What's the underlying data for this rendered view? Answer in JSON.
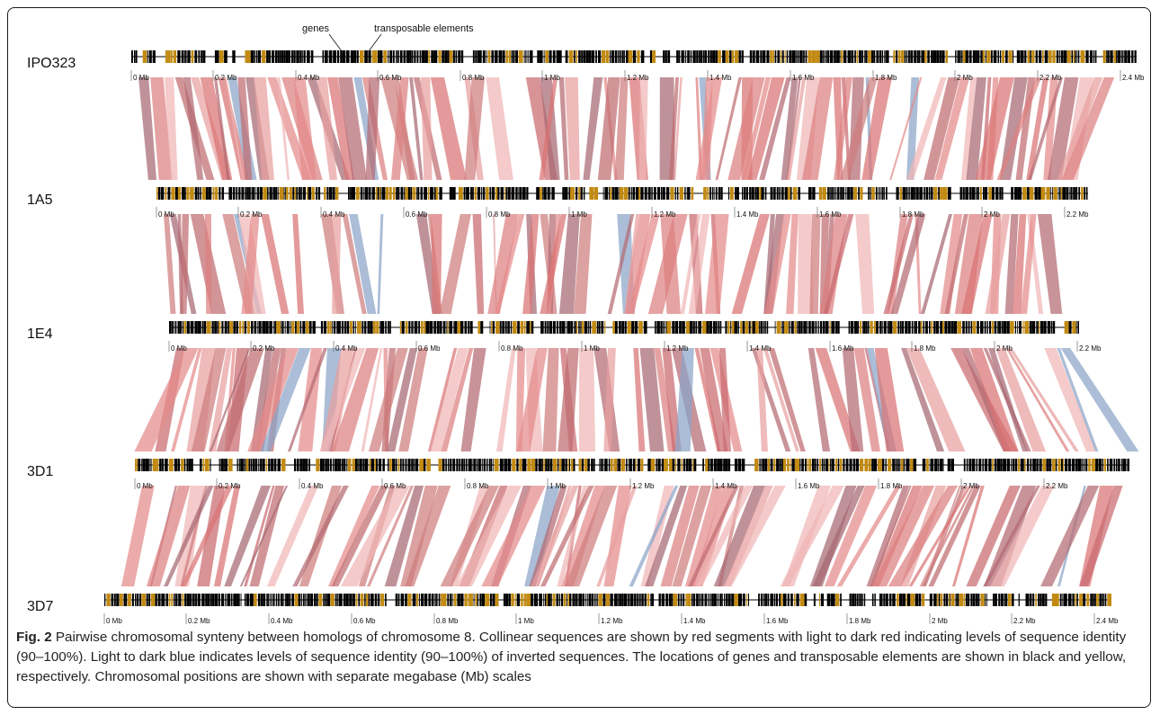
{
  "figure": {
    "legend": {
      "genes_label": "genes",
      "te_label": "transposable elements"
    },
    "colors": {
      "gene": "#000000",
      "transposable_element": "#c28a12",
      "collinear": "#d96b6b",
      "collinear_dark": "#9a6670",
      "inverted": "#8aa3c8"
    },
    "tracks": [
      {
        "name": "IPO323",
        "max_mb": 2.4,
        "ticks": [
          "0 Mb",
          "0.2 Mb",
          "0.4 Mb",
          "0.6 Mb",
          "0.8 Mb",
          "1 Mb",
          "1.2 Mb",
          "1.4 Mb",
          "1.6 Mb",
          "1.8 Mb",
          "2 Mb",
          "2.2 Mb",
          "2.4 Mb"
        ]
      },
      {
        "name": "1A5",
        "max_mb": 2.2,
        "ticks": [
          "0 Mb",
          "0.2 Mb",
          "0.4 Mb",
          "0.6 Mb",
          "0.8 Mb",
          "1 Mb",
          "1.2 Mb",
          "1.4 Mb",
          "1.6 Mb",
          "1.8 Mb",
          "2 Mb",
          "2.2 Mb"
        ]
      },
      {
        "name": "1E4",
        "max_mb": 2.2,
        "ticks": [
          "0 Mb",
          "0.2 Mb",
          "0.4 Mb",
          "0.6 Mb",
          "0.8 Mb",
          "1 Mb",
          "1.2 Mb",
          "1.4 Mb",
          "1.6 Mb",
          "1.8 Mb",
          "2 Mb",
          "2.2 Mb"
        ]
      },
      {
        "name": "3D1",
        "max_mb": 2.2,
        "ticks": [
          "0 Mb",
          "0.2 Mb",
          "0.4 Mb",
          "0.6 Mb",
          "0.8 Mb",
          "1 Mb",
          "1.2 Mb",
          "1.4 Mb",
          "1.6 Mb",
          "1.8 Mb",
          "2 Mb",
          "2.2 Mb"
        ]
      },
      {
        "name": "3D7",
        "max_mb": 2.4,
        "ticks": [
          "0 Mb",
          "0.2 Mb",
          "0.4 Mb",
          "0.6 Mb",
          "0.8 Mb",
          "1 Mb",
          "1.2 Mb",
          "1.4 Mb",
          "1.6 Mb",
          "1.8 Mb",
          "2 Mb",
          "2.2 Mb",
          "2.4 Mb"
        ]
      }
    ]
  },
  "caption": {
    "fig_label": "Fig. 2",
    "text": " Pairwise chromosomal synteny between homologs of chromosome 8. Collinear sequences are shown by red segments with light to dark red indicating levels of sequence identity (90–100%). Light to dark blue indicates levels of sequence identity (90–100%) of inverted sequences. The locations of genes and transposable elements are shown in black and yellow, respectively. Chromosomal positions are shown with separate megabase (Mb) scales"
  }
}
